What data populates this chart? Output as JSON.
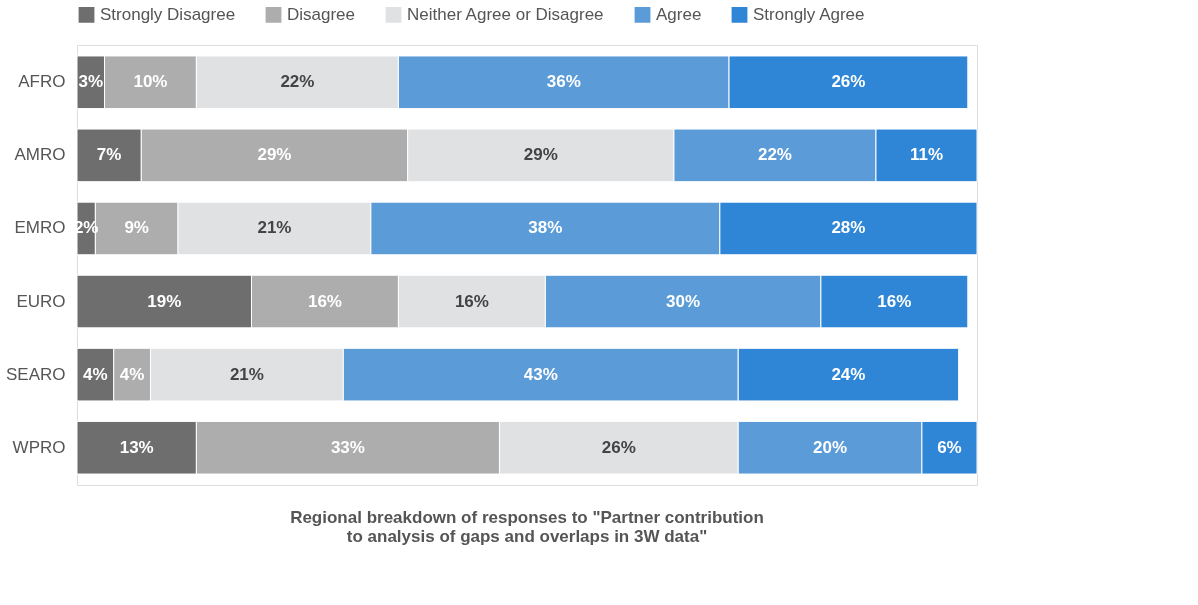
{
  "chart_data": {
    "type": "bar",
    "orientation": "horizontal",
    "stacked": true,
    "legend": "top",
    "grid": false,
    "title": "Regional breakdown of responses to \"Partner contribution to analysis of gaps and overlaps in 3W data\"",
    "categories": [
      "AFRO",
      "AMRO",
      "EMRO",
      "EURO",
      "SEARO",
      "WPRO"
    ],
    "series": [
      {
        "name": "Strongly Disagree",
        "color": "#6e6e6e",
        "values": [
          3,
          7,
          2,
          19,
          4,
          13
        ],
        "value_labels": [
          "3%",
          "7%",
          "2%",
          "19%",
          "4%",
          "13%"
        ]
      },
      {
        "name": "Disagree",
        "color": "#adadad",
        "values": [
          10,
          29,
          9,
          16,
          4,
          33
        ],
        "value_labels": [
          "10%",
          "29%",
          "9%",
          "16%",
          "4%",
          "33%"
        ]
      },
      {
        "name": "Neither Agree or Disagree",
        "color": "#dfe1e3",
        "values": [
          22,
          29,
          21,
          16,
          21,
          26
        ],
        "value_labels": [
          "22%",
          "29%",
          "21%",
          "16%",
          "21%",
          "26%"
        ]
      },
      {
        "name": "Agree",
        "color": "#5b9bd8",
        "values": [
          36,
          22,
          38,
          30,
          43,
          20
        ],
        "value_labels": [
          "36%",
          "22%",
          "38%",
          "30%",
          "43%",
          "20%"
        ]
      },
      {
        "name": "Strongly Agree",
        "color": "#2f86d6",
        "values": [
          26,
          11,
          28,
          16,
          24,
          6
        ],
        "value_labels": [
          "26%",
          "11%",
          "28%",
          "16%",
          "24%",
          "6%"
        ]
      }
    ]
  }
}
